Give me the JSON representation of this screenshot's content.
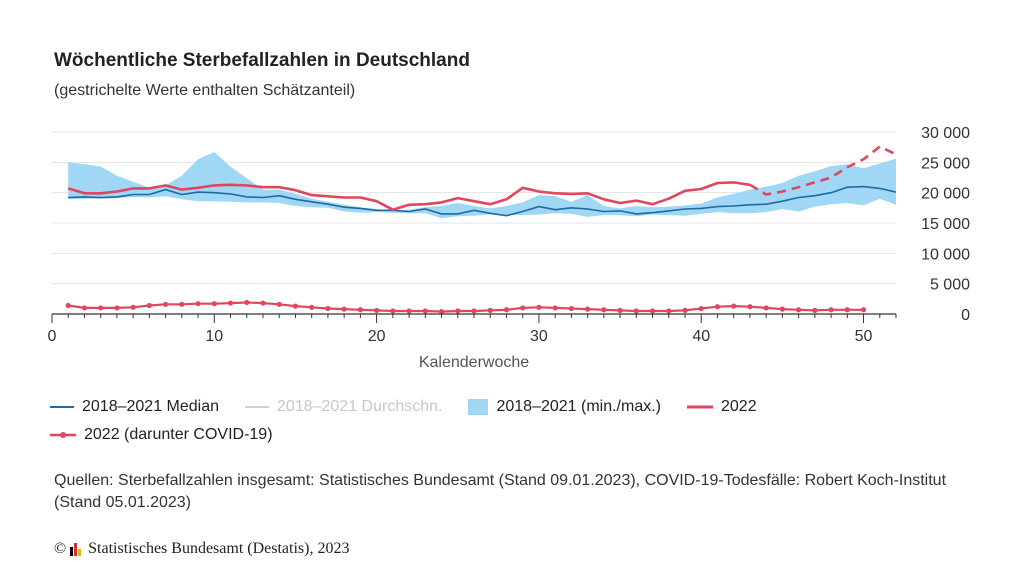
{
  "header": {
    "title": "Wöchentliche Sterbefallzahlen in Deutschland",
    "subtitle": "(gestrichelte Werte enthalten Schätzanteil)"
  },
  "legend": {
    "median": "2018–2021 Median",
    "mean": "2018–2021 Durchschn.",
    "range": "2018–2021 (min./max.)",
    "y2022": "2022",
    "covid": "2022 (darunter COVID-19)"
  },
  "footer": {
    "source": "Quellen: Sterbefallzahlen insgesamt: Statistisches Bundesamt (Stand 09.01.2023), COVID-19-Todesfälle: Robert Koch-Institut (Stand 05.01.2023)",
    "copyright_symbol": "©",
    "copyright_text": "Statistisches Bundesamt (Destatis), 2023"
  },
  "colors": {
    "median": "#1f6aa0",
    "range": "#9fd7f5",
    "y2022": "#e0475e",
    "mean": "#d0d0d0"
  },
  "chart_data": {
    "type": "line",
    "xlabel": "Kalenderwoche",
    "xlim": [
      0,
      52
    ],
    "ylim": [
      0,
      30000
    ],
    "xticks": [
      0,
      10,
      20,
      30,
      40,
      50
    ],
    "yticks": [
      0,
      5000,
      10000,
      15000,
      20000,
      25000,
      30000
    ],
    "ytick_labels": [
      "0",
      "5 000",
      "10 000",
      "15 000",
      "20 000",
      "25 000",
      "30 000"
    ],
    "grid": "horizontal",
    "legend_position": "bottom",
    "weeks": [
      1,
      2,
      3,
      4,
      5,
      6,
      7,
      8,
      9,
      10,
      11,
      12,
      13,
      14,
      15,
      16,
      17,
      18,
      19,
      20,
      21,
      22,
      23,
      24,
      25,
      26,
      27,
      28,
      29,
      30,
      31,
      32,
      33,
      34,
      35,
      36,
      37,
      38,
      39,
      40,
      41,
      42,
      43,
      44,
      45,
      46,
      47,
      48,
      49,
      50,
      51,
      52
    ],
    "range_max": [
      25000,
      24700,
      24300,
      22800,
      21800,
      20800,
      21200,
      22800,
      25500,
      26700,
      24300,
      22400,
      20500,
      20500,
      19800,
      19000,
      18500,
      18000,
      17600,
      17300,
      17000,
      17200,
      17600,
      17800,
      18300,
      17800,
      17400,
      17800,
      18400,
      19600,
      19400,
      18500,
      19600,
      17800,
      17400,
      17800,
      17600,
      17700,
      17900,
      18200,
      19200,
      19800,
      20500,
      21000,
      21600,
      22800,
      23500,
      24400,
      24700,
      24000,
      24800,
      25600
    ],
    "range_min": [
      18900,
      19000,
      19000,
      19100,
      19300,
      19200,
      19400,
      18900,
      18600,
      18600,
      18500,
      18400,
      18400,
      18300,
      17800,
      17600,
      17500,
      16900,
      16700,
      16800,
      16700,
      16600,
      16600,
      15800,
      16100,
      16200,
      16400,
      16300,
      16300,
      16400,
      16600,
      16500,
      16000,
      16300,
      16300,
      16100,
      16400,
      16300,
      16200,
      16500,
      16800,
      16600,
      16600,
      16800,
      17300,
      16900,
      17700,
      18100,
      18300,
      17900,
      19000,
      18000
    ],
    "median": [
      19200,
      19300,
      19200,
      19300,
      19700,
      19700,
      20500,
      19700,
      20100,
      20000,
      19800,
      19300,
      19200,
      19500,
      18900,
      18500,
      18100,
      17600,
      17400,
      17100,
      17100,
      16900,
      17300,
      16500,
      16500,
      17100,
      16600,
      16200,
      16900,
      17700,
      17200,
      17500,
      17300,
      16900,
      17000,
      16500,
      16700,
      17000,
      17300,
      17400,
      17700,
      17800,
      18000,
      18100,
      18600,
      19200,
      19500,
      20000,
      20900,
      21000,
      20700,
      20100
    ],
    "y2022_weeks": [
      1,
      2,
      3,
      4,
      5,
      6,
      7,
      8,
      9,
      10,
      11,
      12,
      13,
      14,
      15,
      16,
      17,
      18,
      19,
      20,
      21,
      22,
      23,
      24,
      25,
      26,
      27,
      28,
      29,
      30,
      31,
      32,
      33,
      34,
      35,
      36,
      37,
      38,
      39,
      40,
      41,
      42,
      43
    ],
    "y2022": [
      20700,
      19900,
      19900,
      20200,
      20700,
      20700,
      21200,
      20500,
      20800,
      21200,
      21300,
      21200,
      20900,
      20900,
      20400,
      19600,
      19400,
      19200,
      19200,
      18600,
      17200,
      18000,
      18100,
      18400,
      19100,
      18600,
      18100,
      18900,
      20800,
      20200,
      19900,
      19800,
      19900,
      18900,
      18300,
      18700,
      18100,
      19000,
      20300,
      20600,
      21600,
      21700,
      21300
    ],
    "y2022_est_weeks": [
      43,
      44,
      45,
      46,
      47,
      48,
      49,
      50,
      51,
      52
    ],
    "y2022_est": [
      21300,
      19700,
      20200,
      20900,
      21700,
      22500,
      24200,
      25500,
      27600,
      26300
    ],
    "covid_weeks": [
      1,
      2,
      3,
      4,
      5,
      6,
      7,
      8,
      9,
      10,
      11,
      12,
      13,
      14,
      15,
      16,
      17,
      18,
      19,
      20,
      21,
      22,
      23,
      24,
      25,
      26,
      27,
      28,
      29,
      30,
      31,
      32,
      33,
      34,
      35,
      36,
      37,
      38,
      39,
      40,
      41,
      42,
      43,
      44,
      45,
      46,
      47,
      48,
      49,
      50
    ],
    "covid": [
      1400,
      1000,
      1000,
      1000,
      1100,
      1400,
      1600,
      1600,
      1700,
      1700,
      1800,
      1900,
      1800,
      1600,
      1300,
      1100,
      900,
      800,
      700,
      600,
      500,
      500,
      500,
      400,
      500,
      500,
      600,
      700,
      1000,
      1100,
      1000,
      900,
      800,
      700,
      600,
      500,
      500,
      500,
      600,
      900,
      1200,
      1300,
      1200,
      1000,
      800,
      700,
      600,
      700,
      700,
      700
    ]
  }
}
